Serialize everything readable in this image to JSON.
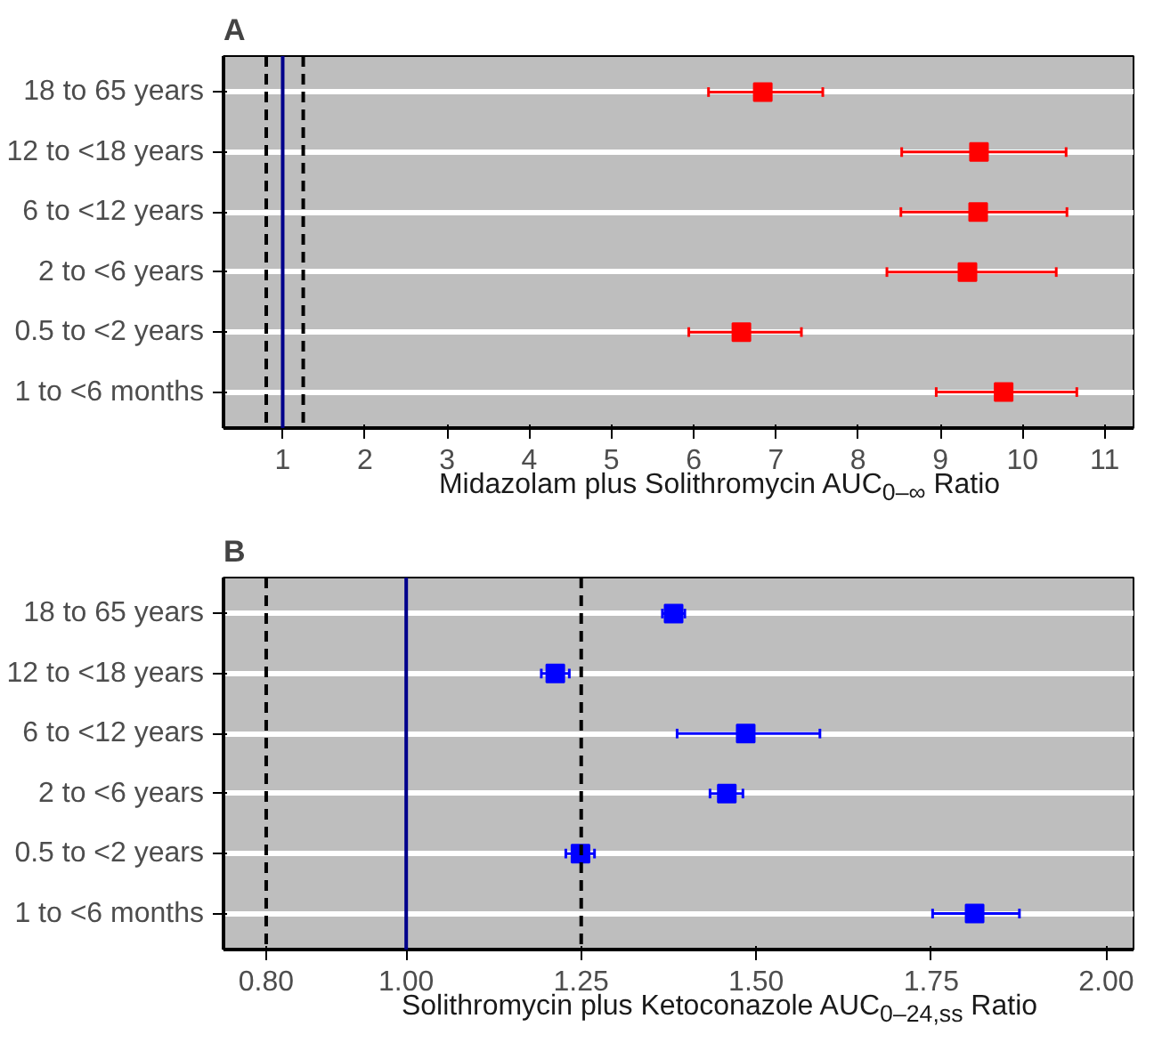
{
  "chart_data": [
    {
      "type": "scatter",
      "title": "A",
      "xlabel": "Midazolam plus Solithromycin AUC$_{0–∞}$ Ratio",
      "orientation": "horizontal",
      "categories": [
        "18 to 65 years",
        "12 to <18 years",
        "6 to <12 years",
        "2 to <6 years",
        "0.5 to <2 years",
        "1 to <6 months"
      ],
      "series": [
        {
          "color": "#ff0000",
          "values": [
            6.84,
            9.47,
            9.46,
            9.33,
            6.58,
            9.77
          ],
          "errors": [
            [
              6.18,
              7.57
            ],
            [
              8.53,
              10.53
            ],
            [
              8.52,
              10.54
            ],
            [
              8.35,
              10.41
            ],
            [
              5.94,
              7.31
            ],
            [
              8.95,
              10.66
            ]
          ]
        }
      ],
      "xlim": [
        0.28,
        11.35
      ],
      "xticks": [
        1,
        2,
        3,
        4,
        5,
        6,
        7,
        8,
        9,
        10,
        11
      ],
      "grid": "y",
      "marker": "square",
      "ref_lines": [
        {
          "axis": "x",
          "value": 0.8,
          "color": "#000000",
          "line_style": "dashed"
        },
        {
          "axis": "x",
          "value": 1,
          "color": "#00008b",
          "line_style": "solid"
        },
        {
          "axis": "x",
          "value": 1.25,
          "color": "#000000",
          "line_style": "dashed"
        }
      ]
    },
    {
      "type": "scatter",
      "title": "B",
      "xlabel": "Solithromycin plus Ketoconazole AUC$_{0–24,ss}$ Ratio",
      "orientation": "horizontal",
      "categories": [
        "18 to 65 years",
        "12 to <18 years",
        "6 to <12 years",
        "2 to <6 years",
        "0.5 to <2 years",
        "1 to <6 months"
      ],
      "series": [
        {
          "color": "#0000ff",
          "values": [
            1.382,
            1.213,
            1.485,
            1.458,
            1.249,
            1.812
          ],
          "errors": [
            [
              1.366,
              1.398
            ],
            [
              1.193,
              1.233
            ],
            [
              1.387,
              1.591
            ],
            [
              1.434,
              1.481
            ],
            [
              1.228,
              1.269
            ],
            [
              1.752,
              1.876
            ]
          ]
        }
      ],
      "xlim": [
        0.739,
        2.039
      ],
      "xticks": [
        {
          "value": 0.8,
          "label": "0.80"
        },
        {
          "value": 1,
          "label": "1.00"
        },
        {
          "value": 1.25,
          "label": "1.25"
        },
        {
          "value": 1.5,
          "label": "1.50"
        },
        {
          "value": 1.75,
          "label": "1.75"
        },
        {
          "value": 2,
          "label": "2.00"
        }
      ],
      "grid": "y",
      "marker": "square",
      "ref_lines": [
        {
          "axis": "x",
          "value": 0.8,
          "color": "#000000",
          "line_style": "dashed"
        },
        {
          "axis": "x",
          "value": 1,
          "color": "#00008b",
          "line_style": "solid"
        },
        {
          "axis": "x",
          "value": 1.25,
          "color": "#000000",
          "line_style": "dashed"
        }
      ]
    }
  ]
}
